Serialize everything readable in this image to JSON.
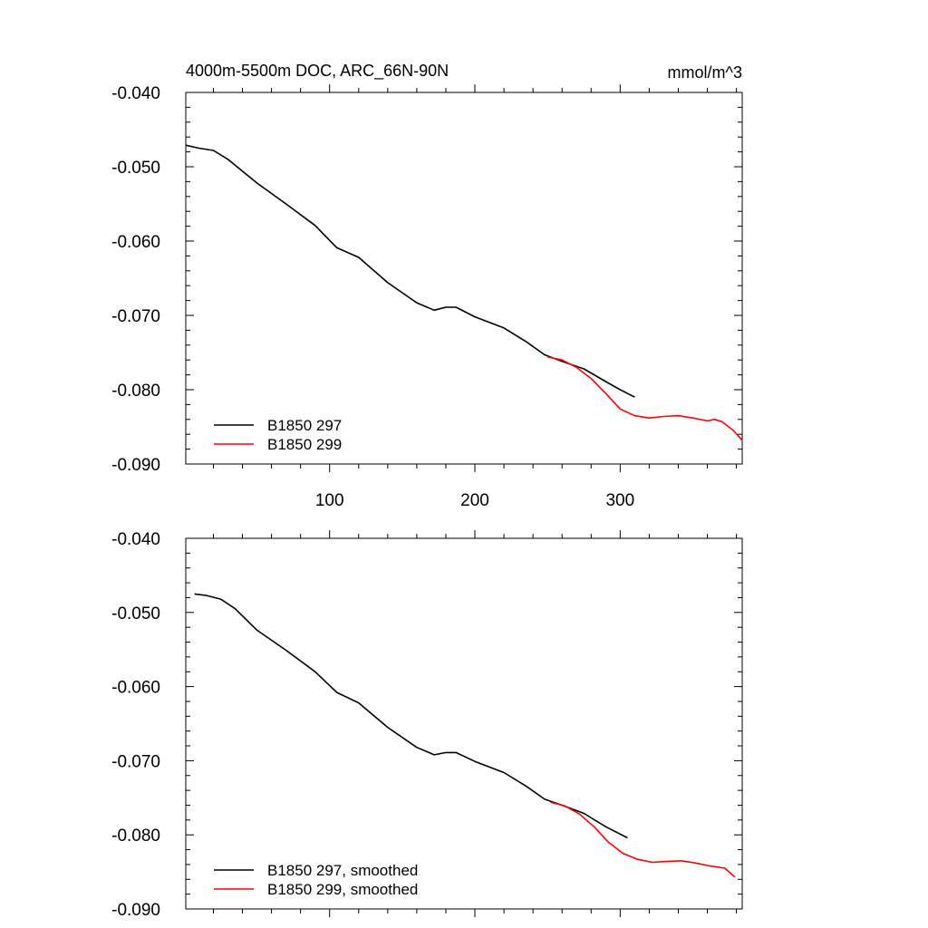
{
  "title_left": "4000m-5500m DOC, ARC_66N-90N",
  "title_right": "mmol/m^3",
  "colors": {
    "run_297": "#000000",
    "run_299": "#ff0000",
    "axis": "#000000"
  },
  "chart_data": [
    {
      "type": "line",
      "title": "4000m-5500m DOC, ARC_66N-90N",
      "units": "mmol/m^3",
      "xlim": [
        1,
        384
      ],
      "ylim": [
        -0.09,
        -0.04
      ],
      "x_ticks": [
        100,
        200,
        300
      ],
      "x_tick_labels": [
        "100",
        "200",
        "300"
      ],
      "y_ticks": [
        -0.04,
        -0.05,
        -0.06,
        -0.07,
        -0.08,
        -0.09
      ],
      "y_tick_labels": [
        "-0.040",
        "-0.050",
        "-0.060",
        "-0.070",
        "-0.080",
        "-0.090"
      ],
      "legend_position": "bottom-left",
      "series": [
        {
          "name": "B1850 297",
          "color": "#000000",
          "x": [
            1,
            10,
            20,
            30,
            50,
            70,
            90,
            105,
            120,
            140,
            160,
            172,
            180,
            187,
            200,
            220,
            235,
            248,
            260,
            275,
            290,
            300,
            310
          ],
          "y": [
            -0.0471,
            -0.0475,
            -0.0478,
            -0.049,
            -0.0522,
            -0.055,
            -0.0579,
            -0.0609,
            -0.0622,
            -0.0656,
            -0.0683,
            -0.0693,
            -0.0689,
            -0.0689,
            -0.0702,
            -0.0717,
            -0.0735,
            -0.0753,
            -0.0762,
            -0.0772,
            -0.0789,
            -0.08,
            -0.081
          ]
        },
        {
          "name": "B1850 299",
          "color": "#ff0000",
          "x": [
            250,
            260,
            270,
            280,
            290,
            300,
            310,
            320,
            330,
            340,
            350,
            360,
            365,
            370,
            378,
            384
          ],
          "y": [
            -0.0756,
            -0.076,
            -0.077,
            -0.0785,
            -0.0805,
            -0.0826,
            -0.0835,
            -0.0838,
            -0.0836,
            -0.0835,
            -0.0838,
            -0.0842,
            -0.084,
            -0.0843,
            -0.0855,
            -0.0868
          ]
        }
      ]
    },
    {
      "type": "line",
      "xlim": [
        1,
        384
      ],
      "ylim": [
        -0.09,
        -0.04
      ],
      "x_ticks": [
        100,
        200,
        300
      ],
      "x_tick_labels": [],
      "y_ticks": [
        -0.04,
        -0.05,
        -0.06,
        -0.07,
        -0.08,
        -0.09
      ],
      "y_tick_labels": [
        "-0.040",
        "-0.050",
        "-0.060",
        "-0.070",
        "-0.080",
        "-0.090"
      ],
      "legend_position": "bottom-left",
      "series": [
        {
          "name": "B1850 297, smoothed",
          "color": "#000000",
          "x": [
            7,
            15,
            25,
            35,
            50,
            70,
            90,
            105,
            120,
            140,
            160,
            172,
            180,
            187,
            200,
            220,
            235,
            248,
            260,
            275,
            290,
            305
          ],
          "y": [
            -0.0475,
            -0.0477,
            -0.0482,
            -0.0495,
            -0.0524,
            -0.0551,
            -0.058,
            -0.0608,
            -0.0622,
            -0.0655,
            -0.0682,
            -0.0692,
            -0.0689,
            -0.0689,
            -0.0701,
            -0.0716,
            -0.0734,
            -0.0752,
            -0.076,
            -0.0771,
            -0.0789,
            -0.0804
          ]
        },
        {
          "name": "B1850 299, smoothed",
          "color": "#ff0000",
          "x": [
            252,
            262,
            272,
            282,
            292,
            302,
            312,
            322,
            332,
            342,
            352,
            362,
            372,
            379
          ],
          "y": [
            -0.0756,
            -0.0761,
            -0.0772,
            -0.0789,
            -0.081,
            -0.0825,
            -0.0833,
            -0.0837,
            -0.0836,
            -0.0835,
            -0.0838,
            -0.0842,
            -0.0845,
            -0.0857
          ]
        }
      ]
    }
  ]
}
